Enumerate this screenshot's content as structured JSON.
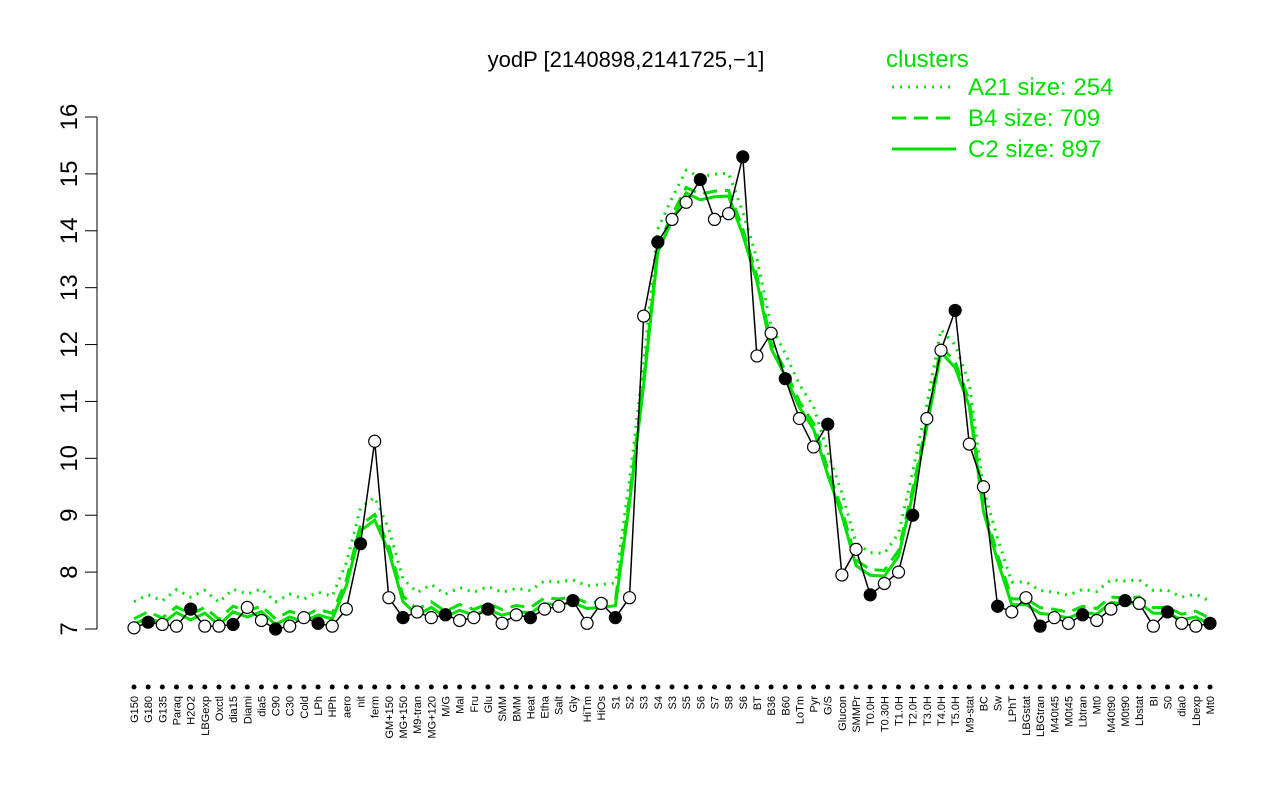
{
  "chart_data": {
    "type": "line",
    "title": "yodP [2140898,2141725,−1]",
    "xlabel": "",
    "ylabel": "",
    "ylim": [
      7,
      16
    ],
    "yticks": [
      7,
      8,
      9,
      10,
      11,
      12,
      13,
      14,
      15,
      16
    ],
    "grid": false,
    "legend": {
      "title": "clusters",
      "position": "top-right",
      "entries": [
        {
          "label": "A21 size: 254",
          "style": "dotted"
        },
        {
          "label": "B4 size: 709",
          "style": "dashed"
        },
        {
          "label": "C2 size: 897",
          "style": "solid"
        }
      ]
    },
    "colors": {
      "clusters": "#00e000",
      "line": "#000000",
      "open_marker": "#ffffff",
      "filled_marker": "#000000"
    },
    "x_tick_labels": [
      "G150",
      "G180",
      "G135",
      "Paraq",
      "H2O2",
      "LBGexp",
      "Oxctl",
      "dia15",
      "Diami",
      "dia5",
      "C90",
      "C30",
      "Cold",
      "LPh",
      "HPh",
      "aero",
      "nit",
      "ferm",
      "GM+150",
      "MG+150",
      "M9-tran",
      "MG+120",
      "M/G",
      "Mal",
      "Fru",
      "Glu",
      "SMM",
      "BMM",
      "Heat",
      "Etha",
      "Salt",
      "Gly",
      "HiTm",
      "HiOs",
      "S1",
      "S2",
      "S3",
      "S4",
      "S3",
      "S5",
      "S6",
      "S7",
      "S8",
      "S6",
      "BT",
      "B36",
      "B60",
      "LoTm",
      "Pyr",
      "G/S",
      "Glucon",
      "SMMPr",
      "T0.0H",
      "T0.30H",
      "T1.0H",
      "T2.0H",
      "T3.0H",
      "T4.0H",
      "T5.0H",
      "M9-stat",
      "BC",
      "Sw",
      "LPhT",
      "LBGstat",
      "LBGtran",
      "M40t45",
      "M0t45",
      "Lbtran",
      "Mt0",
      "M40t90",
      "M0t90",
      "Lbstat",
      "BI",
      "S0",
      "dia0",
      "Lbexp",
      "Mt0"
    ],
    "series": [
      {
        "values": [
          7.02,
          7.12,
          7.08,
          7.05,
          7.35,
          7.05,
          7.05,
          7.08,
          7.38,
          7.15,
          7.0,
          7.05,
          7.2,
          7.1,
          7.05,
          7.35,
          8.5,
          10.3,
          7.55,
          7.2,
          7.3,
          7.2,
          7.25,
          7.15,
          7.2,
          7.35,
          7.1,
          7.25,
          7.2,
          7.35,
          7.4,
          7.5,
          7.1,
          7.45,
          7.2,
          7.55,
          12.5,
          13.8,
          14.2,
          14.5,
          14.9,
          14.2,
          14.3,
          15.3,
          11.8,
          12.2,
          11.4,
          10.7,
          10.2,
          10.6,
          7.95,
          8.4,
          7.6,
          7.8,
          8.0,
          9.0,
          10.7,
          11.9,
          12.6,
          10.25,
          9.5,
          7.4,
          7.3,
          7.55,
          7.05,
          7.2,
          7.1,
          7.25,
          7.15,
          7.35,
          7.5,
          7.45,
          7.05,
          7.3,
          7.1,
          7.05,
          7.1
        ]
      }
    ]
  }
}
